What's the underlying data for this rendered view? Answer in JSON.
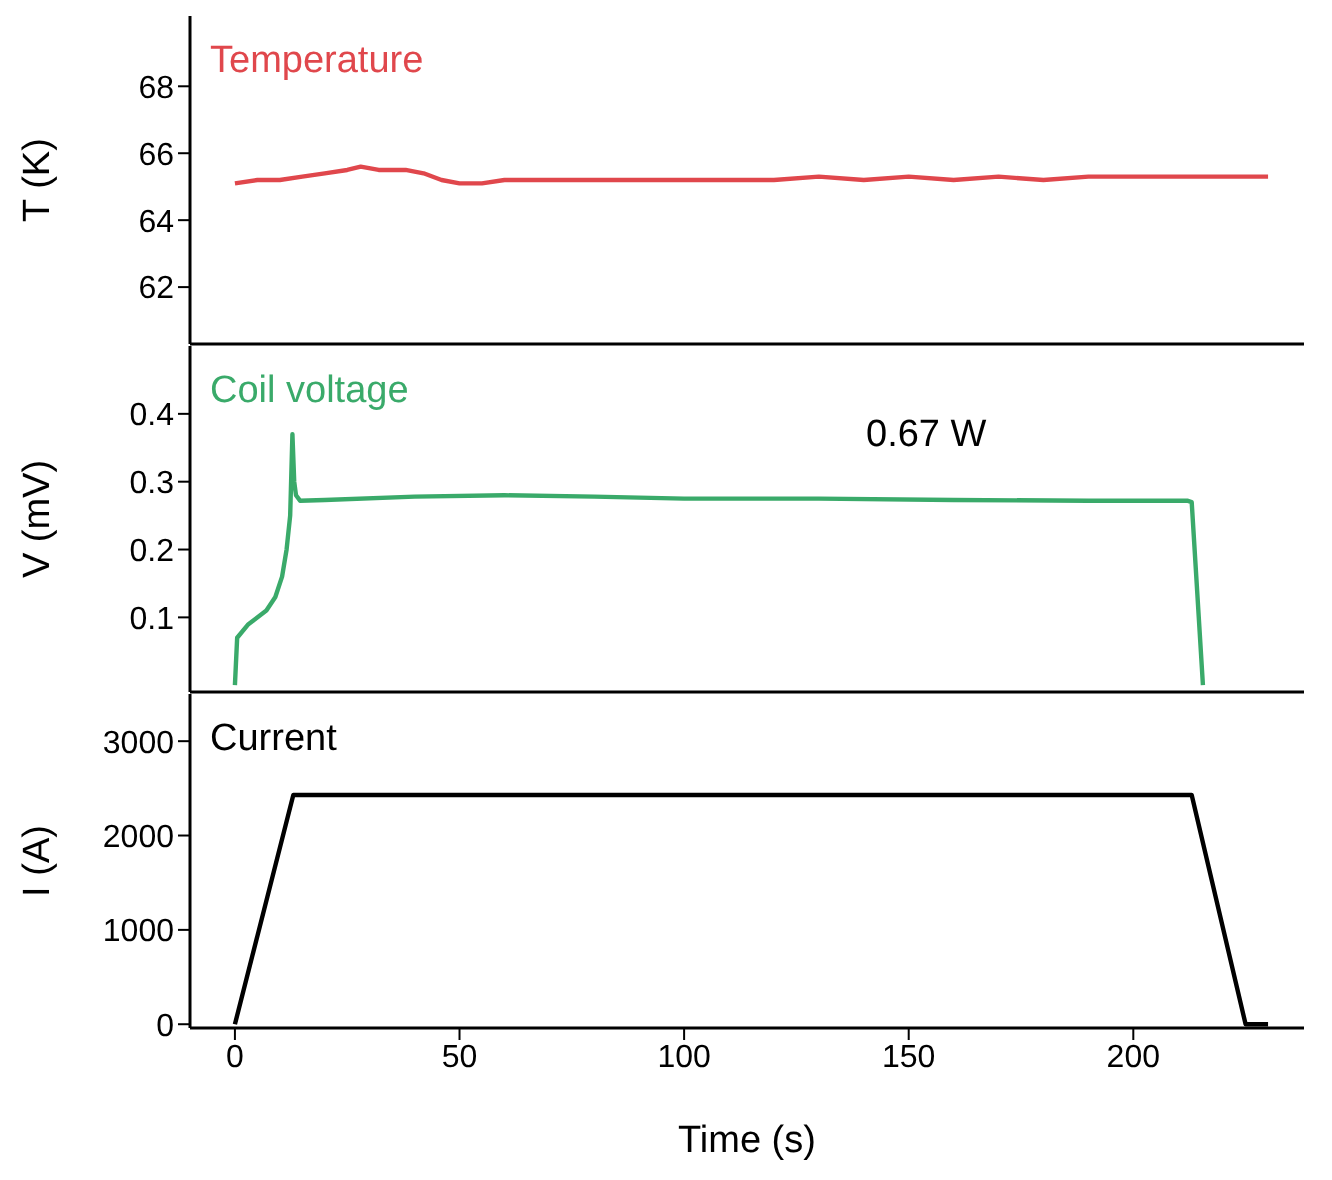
{
  "chart_data": [
    {
      "type": "line",
      "ylabel": "T (K)",
      "xlim": [
        -10,
        238
      ],
      "xticks": [
        0,
        50,
        100,
        150,
        200
      ],
      "ylim": [
        60.3,
        70.1
      ],
      "yticks": [
        62,
        64,
        66,
        68
      ],
      "tick_labels": "y",
      "series": [
        {
          "name": "Temperature",
          "color": "#e0474c",
          "x": [
            0,
            5,
            10,
            15,
            20,
            25,
            28,
            32,
            38,
            42,
            46,
            50,
            55,
            60,
            70,
            80,
            90,
            100,
            110,
            120,
            130,
            140,
            150,
            160,
            170,
            180,
            190,
            200,
            210,
            220,
            230
          ],
          "values": [
            65.1,
            65.2,
            65.2,
            65.3,
            65.4,
            65.5,
            65.6,
            65.5,
            65.5,
            65.4,
            65.2,
            65.1,
            65.1,
            65.2,
            65.2,
            65.2,
            65.2,
            65.2,
            65.2,
            65.2,
            65.3,
            65.2,
            65.3,
            65.2,
            65.3,
            65.2,
            65.3,
            65.3,
            65.3,
            65.3,
            65.3
          ]
        }
      ]
    },
    {
      "type": "line",
      "ylabel": "V (mV)",
      "xlim": [
        -10,
        238
      ],
      "xticks": [
        0,
        50,
        100,
        150,
        200
      ],
      "ylim": [
        -0.01,
        0.5
      ],
      "yticks": [
        0.1,
        0.2,
        0.3,
        0.4
      ],
      "tick_labels": "y",
      "annotations": [
        "0.67 W"
      ],
      "series": [
        {
          "name": "Coil voltage",
          "color": "#3aaa6a",
          "x": [
            0,
            0.5,
            3,
            7,
            9,
            10.5,
            11.5,
            12.3,
            12.8,
            13.2,
            13.6,
            14.5,
            20,
            40,
            60,
            80,
            100,
            130,
            160,
            190,
            212,
            213,
            215.5
          ],
          "values": [
            0,
            0.07,
            0.09,
            0.11,
            0.13,
            0.16,
            0.2,
            0.25,
            0.37,
            0.3,
            0.28,
            0.272,
            0.273,
            0.278,
            0.28,
            0.278,
            0.275,
            0.275,
            0.273,
            0.272,
            0.272,
            0.27,
            0
          ]
        }
      ]
    },
    {
      "type": "line",
      "xlabel": "Time (s)",
      "ylabel": "I (A)",
      "xlim": [
        -10,
        238
      ],
      "xticks": [
        0,
        50,
        100,
        150,
        200
      ],
      "ylim": [
        -40,
        3500
      ],
      "yticks": [
        0,
        1000,
        2000,
        3000
      ],
      "series": [
        {
          "name": "Current",
          "color": "#000000",
          "x": [
            0,
            13,
            213,
            225,
            230
          ],
          "values": [
            0,
            2430,
            2430,
            0,
            0
          ]
        }
      ]
    }
  ]
}
